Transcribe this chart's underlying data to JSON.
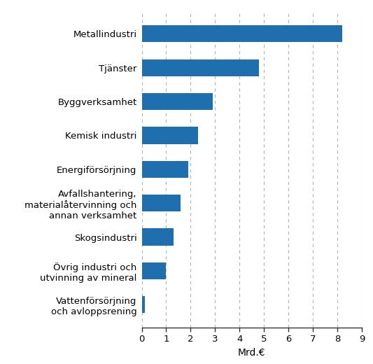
{
  "categories": [
    "Vattenförsörjning\noch avloppsrening",
    "Övrig industri och\nutvinning av mineral",
    "Skogsindustri",
    "Avfallshantering,\nmaterialåtervinning och\nannan verksamhet",
    "Energiförsörjning",
    "Kemisk industri",
    "Byggverksamhet",
    "Tjänster",
    "Metallindustri"
  ],
  "values": [
    0.12,
    1.0,
    1.3,
    1.6,
    1.9,
    2.3,
    2.9,
    4.8,
    8.2
  ],
  "bar_color": "#1f6faf",
  "xlabel": "Mrd.€",
  "xlim": [
    0,
    9
  ],
  "xticks": [
    0,
    1,
    2,
    3,
    4,
    5,
    6,
    7,
    8,
    9
  ],
  "grid_color": "#b0b0b0",
  "bar_height": 0.5,
  "tick_fontsize": 9.5,
  "label_fontsize": 10
}
